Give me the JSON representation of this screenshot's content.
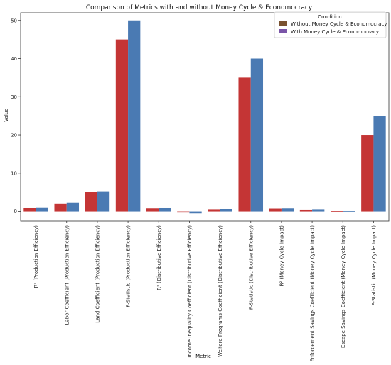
{
  "chart_data": {
    "type": "bar",
    "title": "Comparison of Metrics with and without Money Cycle & Economocracy",
    "xlabel": "Metric",
    "ylabel": "Value",
    "ylim": [
      -2.5,
      52
    ],
    "yticks": [
      0,
      10,
      20,
      30,
      40,
      50
    ],
    "categories": [
      "R² (Production Efficiency)",
      "Labor Coefficient (Production Efficiency)",
      "Land Coefficient (Production Efficiency)",
      "F-Statistic (Production Efficiency)",
      "R² (Distributive Efficiency)",
      "Income Inequality Coefficient (Distributive Efficiency)",
      "Welfare Programs Coefficient (Distributive Efficiency)",
      "F-Statistic (Distributive Efficiency)",
      "R² (Money Cycle Impact)",
      "Enforcement Savings Coefficient (Money Cycle Impact)",
      "Escape Savings Coefficient (Money Cycle Impact)",
      "F-Statistic (Money Cycle Impact)"
    ],
    "series": [
      {
        "name": "Without Money Cycle & Economocracy",
        "color": "#c43535",
        "legend_color": "#7a5230",
        "values": [
          0.85,
          2.0,
          5.0,
          45.0,
          0.8,
          -0.3,
          0.4,
          35.0,
          0.75,
          0.3,
          0.1,
          20.0
        ]
      },
      {
        "name": "With Money Cycle & Economocracy",
        "color": "#4a7ab3",
        "legend_color": "#7a55a8",
        "values": [
          0.9,
          2.2,
          5.2,
          50.0,
          0.85,
          -0.5,
          0.5,
          40.0,
          0.8,
          0.4,
          0.1,
          25.0
        ]
      }
    ],
    "legend": {
      "title": "Condition",
      "position": "top-right"
    },
    "grid": false
  }
}
